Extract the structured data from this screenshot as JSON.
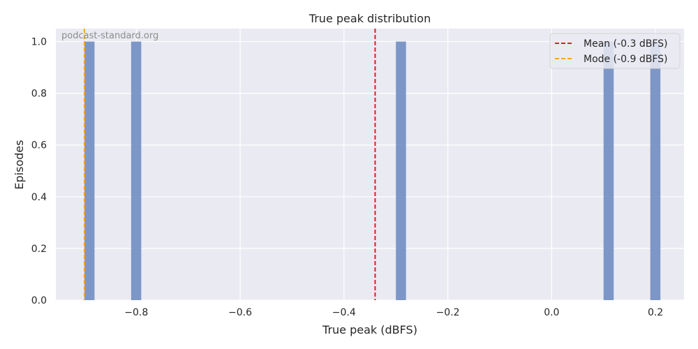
{
  "chart_data": {
    "type": "bar",
    "title": "True peak distribution",
    "xlabel": "True peak (dBFS)",
    "ylabel": "Episodes",
    "xlim": [
      -0.955,
      0.255
    ],
    "ylim": [
      0,
      1.05
    ],
    "xticks": [
      -0.8,
      -0.6,
      -0.4,
      -0.2,
      0.0,
      0.2
    ],
    "xtick_labels": [
      "−0.8",
      "−0.6",
      "−0.4",
      "−0.2",
      "0.0",
      "0.2"
    ],
    "yticks": [
      0.0,
      0.2,
      0.4,
      0.6,
      0.8,
      1.0
    ],
    "ytick_labels": [
      "0.0",
      "0.2",
      "0.4",
      "0.6",
      "0.8",
      "1.0"
    ],
    "bin_width": 0.0195,
    "bars": [
      {
        "x": -0.9,
        "value": 1
      },
      {
        "x": -0.81,
        "value": 1
      },
      {
        "x": -0.3,
        "value": 1
      },
      {
        "x": 0.1,
        "value": 1
      },
      {
        "x": 0.19,
        "value": 1
      }
    ],
    "vlines": [
      {
        "label": "Mean (-0.3 dBFS)",
        "x": -0.34,
        "color": "#e11d1d"
      },
      {
        "label": "Mode (-0.9 dBFS)",
        "x": -0.9,
        "color": "#f5a623"
      }
    ],
    "bar_color": "#7692c4",
    "background": "#eaeaf2",
    "grid": true,
    "legend_position": "top-right"
  },
  "watermark": "podcast-standard.org"
}
